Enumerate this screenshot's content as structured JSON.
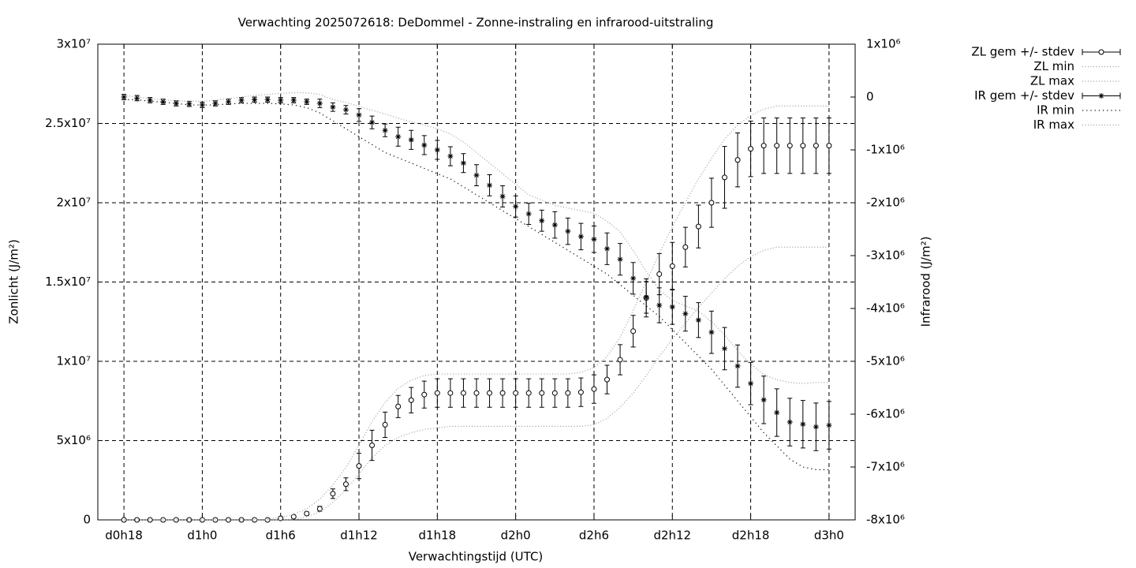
{
  "chart_data": {
    "type": "errorbar",
    "title": "Verwachting 2025072618: DeDommel - Zonne-instraling en infrarood-uitstraling",
    "x_label": "Verwachtingstijd (UTC)",
    "y_label": "Zonlicht (J/m²)",
    "y2_label": "Infrarood (J/m²)",
    "grid": true,
    "legend_position": "outside-top-right",
    "x": [
      0,
      1,
      2,
      3,
      4,
      5,
      6,
      7,
      8,
      9,
      10,
      11,
      12,
      13,
      14,
      15,
      16,
      17,
      18,
      19,
      20,
      21,
      22,
      23,
      24,
      25,
      26,
      27,
      28,
      29,
      30,
      31,
      32,
      33,
      34,
      35,
      36,
      37,
      38,
      39,
      40,
      41,
      42,
      43,
      44,
      45,
      46,
      47,
      48,
      49,
      50,
      51,
      52,
      53,
      54
    ],
    "xlim": [
      -2,
      56
    ],
    "xticks": [
      {
        "value": 0,
        "label": "d0h18"
      },
      {
        "value": 6,
        "label": "d1h0"
      },
      {
        "value": 12,
        "label": "d1h6"
      },
      {
        "value": 18,
        "label": "d1h12"
      },
      {
        "value": 24,
        "label": "d1h18"
      },
      {
        "value": 30,
        "label": "d2h0"
      },
      {
        "value": 36,
        "label": "d2h6"
      },
      {
        "value": 42,
        "label": "d2h12"
      },
      {
        "value": 48,
        "label": "d2h18"
      },
      {
        "value": 54,
        "label": "d3h0"
      }
    ],
    "ylim": [
      0,
      30000000
    ],
    "yticks": [
      0,
      {
        "value": 5000000,
        "label": "5x10⁶"
      },
      {
        "value": 10000000,
        "label": "1x10⁷"
      },
      {
        "value": 15000000,
        "label": "1.5x10⁷"
      },
      {
        "value": 20000000,
        "label": "2x10⁷"
      },
      {
        "value": 25000000,
        "label": "2.5x10⁷"
      },
      {
        "value": 30000000,
        "label": "3x10⁷"
      }
    ],
    "y2lim": [
      -8000000,
      1000000
    ],
    "y2ticks": [
      {
        "value": 1000000,
        "label": "1x10⁶"
      },
      0,
      {
        "value": -1000000,
        "label": "-1x10⁶"
      },
      {
        "value": -2000000,
        "label": "-2x10⁶"
      },
      {
        "value": -3000000,
        "label": "-3x10⁶"
      },
      {
        "value": -4000000,
        "label": "-4x10⁶"
      },
      {
        "value": -5000000,
        "label": "-5x10⁶"
      },
      {
        "value": -6000000,
        "label": "-6x10⁶"
      },
      {
        "value": -7000000,
        "label": "-7x10⁶"
      },
      {
        "value": -8000000,
        "label": "-8x10⁶"
      }
    ],
    "series": [
      {
        "name": "ZL gem +/- stdev",
        "style": "errorbars",
        "marker": "circle",
        "color": "#000000",
        "axis": "y",
        "values": [
          0,
          0,
          0,
          0,
          0,
          0,
          0,
          0,
          0,
          0,
          0,
          0,
          100000.0,
          200000.0,
          400000.0,
          700000.0,
          1650000.0,
          2250000.0,
          3400000.0,
          4700000.0,
          6000000.0,
          7150000.0,
          7550000.0,
          7900000.0,
          8000000.0,
          8000000.0,
          8000000.0,
          8000000.0,
          8000000.0,
          8000000.0,
          8000000.0,
          8000000.0,
          8000000.0,
          8000000.0,
          8000000.0,
          8050000.0,
          8250000.0,
          8850000.0,
          10100000.0,
          11900000.0,
          14000000.0,
          15500000.0,
          16000000.0,
          17200000.0,
          18500000.0,
          20000000.0,
          21600000.0,
          22700000.0,
          23400000.0,
          23600000.0,
          23600000.0,
          23600000.0,
          23600000.0,
          23600000.0,
          23600000.0
        ],
        "stdev": [
          0,
          0,
          0,
          0,
          0,
          0,
          0,
          0,
          0,
          0,
          0,
          0,
          50000.0,
          50000.0,
          100000.0,
          150000.0,
          300000.0,
          400000.0,
          800000.0,
          950000.0,
          800000.0,
          700000.0,
          800000.0,
          850000.0,
          900000.0,
          900000.0,
          900000.0,
          900000.0,
          900000.0,
          900000.0,
          900000.0,
          900000.0,
          900000.0,
          900000.0,
          900000.0,
          900000.0,
          900000.0,
          900000.0,
          950000.0,
          1000000.0,
          1200000.0,
          1300000.0,
          1500000.0,
          1250000.0,
          1350000.0,
          1550000.0,
          1950000.0,
          1700000.0,
          1750000.0,
          1750000.0,
          1750000.0,
          1750000.0,
          1750000.0,
          1750000.0,
          1750000.0
        ]
      },
      {
        "name": "ZL min",
        "style": "dotted",
        "color": "#999999",
        "axis": "y",
        "values": [
          0,
          0,
          0,
          0,
          0,
          0,
          0,
          0,
          0,
          0,
          0,
          0,
          0,
          0,
          200000.0,
          500000.0,
          1100000.0,
          1900000.0,
          2900000.0,
          3900000.0,
          4700000.0,
          5200000.0,
          5500000.0,
          5700000.0,
          5800000.0,
          5900000.0,
          5900000.0,
          5900000.0,
          5900000.0,
          5900000.0,
          5900000.0,
          5900000.0,
          5900000.0,
          5900000.0,
          5900000.0,
          5900000.0,
          6000000.0,
          6400000.0,
          7100000.0,
          8000000.0,
          9100000.0,
          10300000.0,
          11400000.0,
          12400000.0,
          13400000.0,
          14300000.0,
          15200000.0,
          16000000.0,
          16600000.0,
          17000000.0,
          17200000.0,
          17200000.0,
          17200000.0,
          17200000.0,
          17200000.0
        ]
      },
      {
        "name": "ZL max",
        "style": "dotted",
        "color": "#999999",
        "axis": "y",
        "values": [
          0,
          0,
          0,
          0,
          0,
          0,
          0,
          0,
          0,
          0,
          0,
          50000.0,
          150000.0,
          350000.0,
          700000.0,
          1300000.0,
          2200000.0,
          3300000.0,
          4700000.0,
          6200000.0,
          7400000.0,
          8300000.0,
          8800000.0,
          9100000.0,
          9200000.0,
          9200000.0,
          9200000.0,
          9200000.0,
          9200000.0,
          9200000.0,
          9200000.0,
          9200000.0,
          9200000.0,
          9200000.0,
          9200000.0,
          9300000.0,
          9600000.0,
          10300000.0,
          11500000.0,
          13200000.0,
          15000000.0,
          16800000.0,
          18500000.0,
          20000000.0,
          21500000.0,
          22800000.0,
          24000000.0,
          24900000.0,
          25500000.0,
          25900000.0,
          26100000.0,
          26100000.0,
          26100000.0,
          26100000.0,
          26100000.0
        ]
      },
      {
        "name": "IR gem +/- stdev",
        "style": "errorbars",
        "marker": "star",
        "color": "#000000",
        "axis": "y2",
        "values": [
          0,
          -20000.0,
          -60000.0,
          -90000.0,
          -120000.0,
          -130000.0,
          -150000.0,
          -120000.0,
          -90000.0,
          -60000.0,
          -50000.0,
          -50000.0,
          -60000.0,
          -60000.0,
          -90000.0,
          -120000.0,
          -190000.0,
          -240000.0,
          -340000.0,
          -480000.0,
          -630000.0,
          -750000.0,
          -810000.0,
          -910000.0,
          -1000000.0,
          -1120000.0,
          -1250000.0,
          -1480000.0,
          -1670000.0,
          -1880000.0,
          -2070000.0,
          -2210000.0,
          -2340000.0,
          -2420000.0,
          -2540000.0,
          -2640000.0,
          -2690000.0,
          -2870000.0,
          -3070000.0,
          -3430000.0,
          -3790000.0,
          -3940000.0,
          -3970000.0,
          -4100000.0,
          -4220000.0,
          -4450000.0,
          -4760000.0,
          -5090000.0,
          -5420000.0,
          -5730000.0,
          -5970000.0,
          -6150000.0,
          -6190000.0,
          -6240000.0,
          -6210000.0
        ],
        "stdev": [
          50000.0,
          50000.0,
          50000.0,
          50000.0,
          50000.0,
          50000.0,
          50000.0,
          50000.0,
          50000.0,
          50000.0,
          50000.0,
          50000.0,
          50000.0,
          50000.0,
          50000.0,
          80000.0,
          80000.0,
          80000.0,
          120000.0,
          120000.0,
          120000.0,
          180000.0,
          180000.0,
          180000.0,
          180000.0,
          180000.0,
          180000.0,
          200000.0,
          200000.0,
          200000.0,
          200000.0,
          200000.0,
          200000.0,
          250000.0,
          250000.0,
          250000.0,
          250000.0,
          300000.0,
          300000.0,
          300000.0,
          300000.0,
          330000.0,
          330000.0,
          330000.0,
          330000.0,
          400000.0,
          400000.0,
          400000.0,
          400000.0,
          450000.0,
          450000.0,
          450000.0,
          450000.0,
          450000.0,
          450000.0
        ]
      },
      {
        "name": "IR min",
        "style": "dotted",
        "color": "#000000",
        "axis": "y2",
        "values": [
          -50000.0,
          -50000.0,
          -80000.0,
          -100000.0,
          -120000.0,
          -150000.0,
          -150000.0,
          -150000.0,
          -130000.0,
          -120000.0,
          -120000.0,
          -120000.0,
          -130000.0,
          -150000.0,
          -200000.0,
          -300000.0,
          -450000.0,
          -600000.0,
          -750000.0,
          -900000.0,
          -1050000.0,
          -1150000.0,
          -1250000.0,
          -1350000.0,
          -1450000.0,
          -1550000.0,
          -1700000.0,
          -1850000.0,
          -2000000.0,
          -2150000.0,
          -2300000.0,
          -2450000.0,
          -2600000.0,
          -2750000.0,
          -2900000.0,
          -3050000.0,
          -3200000.0,
          -3350000.0,
          -3550000.0,
          -3750000.0,
          -3950000.0,
          -4150000.0,
          -4400000.0,
          -4650000.0,
          -4900000.0,
          -5150000.0,
          -5450000.0,
          -5750000.0,
          -6050000.0,
          -6350000.0,
          -6600000.0,
          -6850000.0,
          -7000000.0,
          -7050000.0,
          -7050000.0
        ]
      },
      {
        "name": "IR max",
        "style": "dotted",
        "color": "#999999",
        "axis": "y2",
        "values": [
          30000.0,
          0,
          -30000.0,
          -50000.0,
          -70000.0,
          -80000.0,
          -80000.0,
          -60000.0,
          -30000.0,
          0,
          30000.0,
          50000.0,
          70000.0,
          80000.0,
          80000.0,
          50000.0,
          -50000.0,
          -100000.0,
          -180000.0,
          -250000.0,
          -320000.0,
          -400000.0,
          -470000.0,
          -530000.0,
          -600000.0,
          -700000.0,
          -850000.0,
          -1050000.0,
          -1250000.0,
          -1450000.0,
          -1650000.0,
          -1850000.0,
          -1950000.0,
          -2050000.0,
          -2100000.0,
          -2150000.0,
          -2200000.0,
          -2350000.0,
          -2550000.0,
          -2900000.0,
          -3300000.0,
          -3650000.0,
          -3850000.0,
          -3950000.0,
          -4050000.0,
          -4250000.0,
          -4500000.0,
          -4800000.0,
          -5050000.0,
          -5250000.0,
          -5350000.0,
          -5400000.0,
          -5420000.0,
          -5400000.0,
          -5400000.0
        ]
      }
    ]
  }
}
